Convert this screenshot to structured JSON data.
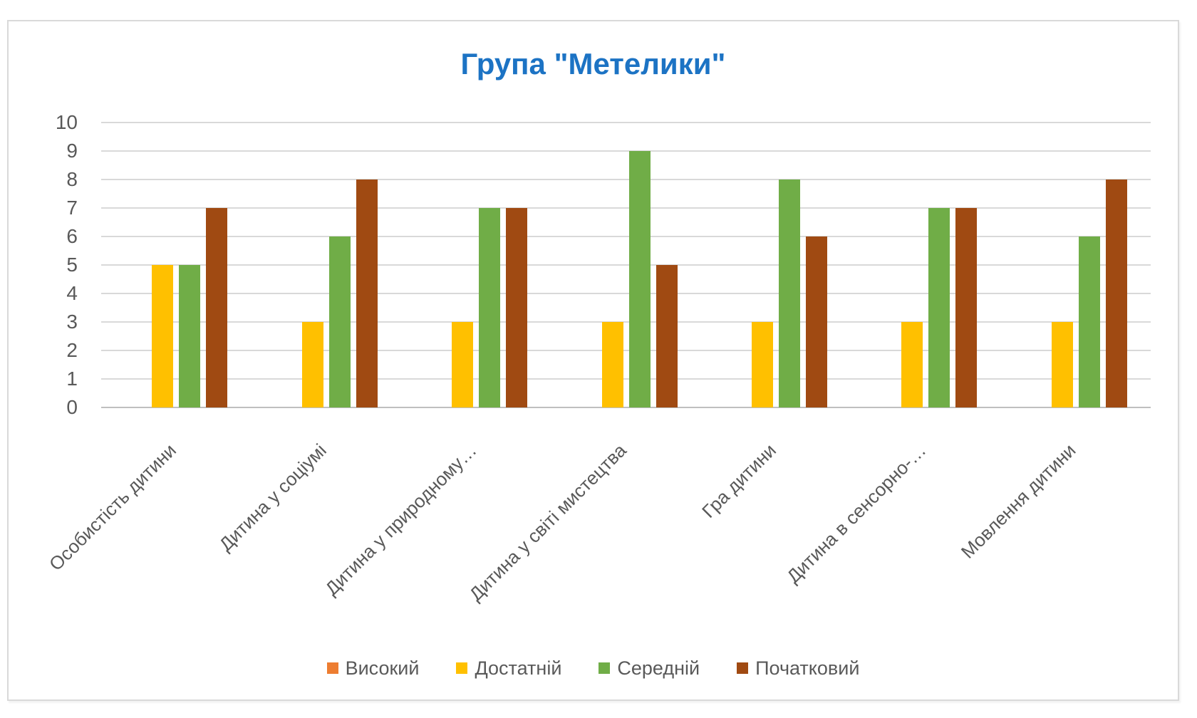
{
  "title": "Група \"Метелики\"",
  "colors": {
    "title": "#1C73C4",
    "axis_text": "#595959",
    "gridline": "#D9D9D9",
    "axis_line": "#BFBFBF",
    "frame_border": "#D9D9D9"
  },
  "chart_data": {
    "type": "bar",
    "title": "Група \"Метелики\"",
    "categories": [
      "Особистість дитини",
      "Дитина у соціумі",
      "Дитина у природному…",
      "Дитина у світі мистецтва",
      "Гра дитини",
      "Дитина в сенсорно-…",
      "Мовлення дитини"
    ],
    "series": [
      {
        "name": "Високий",
        "color": "#ED7D31",
        "values": [
          0,
          0,
          0,
          0,
          0,
          0,
          0
        ]
      },
      {
        "name": "Достатній",
        "color": "#FFC000",
        "values": [
          5,
          3,
          3,
          3,
          3,
          3,
          3
        ]
      },
      {
        "name": "Середній",
        "color": "#70AD47",
        "values": [
          5,
          6,
          7,
          9,
          8,
          7,
          6
        ]
      },
      {
        "name": "Початковий",
        "color": "#A04A12",
        "values": [
          7,
          8,
          7,
          5,
          6,
          7,
          8
        ]
      }
    ],
    "xlabel": "",
    "ylabel": "",
    "ylim": [
      0,
      10
    ],
    "yticks": [
      0,
      1,
      2,
      3,
      4,
      5,
      6,
      7,
      8,
      9,
      10
    ],
    "grid": true,
    "legend_position": "bottom"
  }
}
